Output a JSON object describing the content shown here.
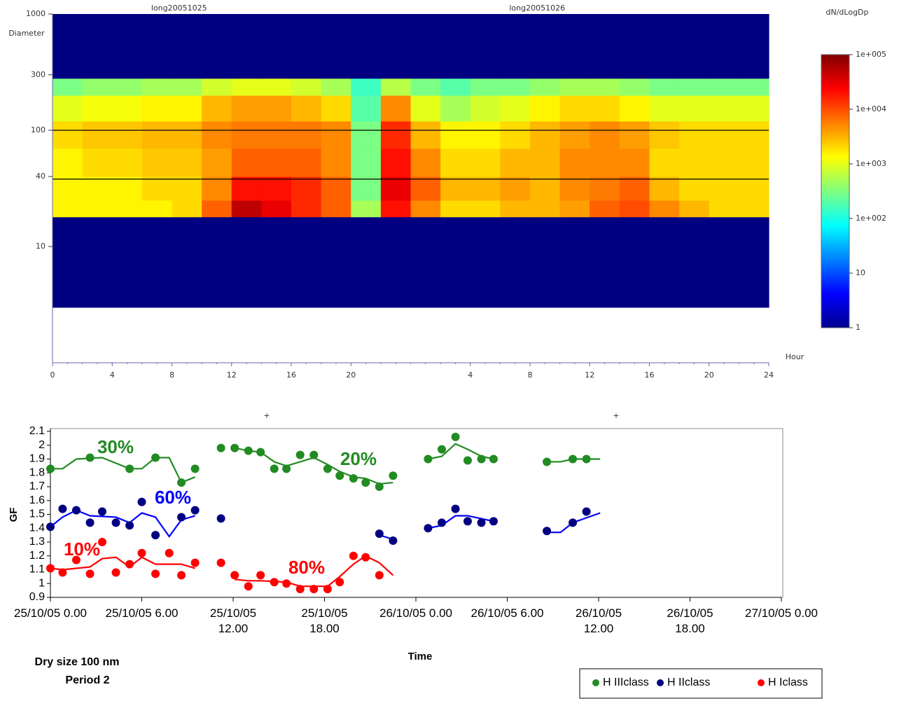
{
  "chart_data": [
    {
      "type": "heatmap",
      "y_label": "Diameter",
      "x_label": "Hour",
      "colorbar_label": "dN/dLogDp",
      "log_y": true,
      "ylim": [
        1,
        1000
      ],
      "yticks": [
        10,
        40,
        100,
        300,
        1000
      ],
      "clim": [
        1,
        100000
      ],
      "cticks": [
        {
          "value": 100000,
          "label": "1e+005"
        },
        {
          "value": 10000,
          "label": "1e+004"
        },
        {
          "value": 1000,
          "label": "1e+003"
        },
        {
          "value": 100,
          "label": "1e+002"
        },
        10,
        1
      ],
      "colormap": "jet",
      "hlines": [
        38,
        100
      ],
      "symbols": [
        "+",
        "+"
      ],
      "row_edges": [
        3,
        18,
        25,
        40,
        70,
        120,
        200,
        280,
        1000
      ],
      "days": [
        {
          "title": "long20051025",
          "xlim": [
            0,
            24
          ],
          "xticks": [
            0,
            4,
            8,
            12,
            16,
            20
          ],
          "col_edges": [
            0,
            2,
            4,
            6,
            8,
            10,
            12,
            14,
            16,
            18,
            20,
            22,
            24
          ],
          "values": [
            [
              1,
              1,
              1,
              1,
              1,
              1,
              1,
              1,
              1,
              1,
              1,
              1
            ],
            [
              1500,
              1500,
              1500,
              1500,
              2000,
              8000,
              50000,
              30000,
              15000,
              8000,
              500,
              20000
            ],
            [
              1500,
              1500,
              1500,
              2000,
              2000,
              5000,
              20000,
              20000,
              15000,
              8000,
              300,
              30000
            ],
            [
              1500,
              2000,
              2000,
              2500,
              2500,
              4000,
              8000,
              8000,
              8000,
              5000,
              300,
              20000
            ],
            [
              2000,
              2500,
              2500,
              3000,
              3000,
              5000,
              6000,
              6000,
              6000,
              5000,
              300,
              15000
            ],
            [
              1000,
              1200,
              1200,
              1500,
              1500,
              3000,
              4000,
              4000,
              3000,
              2000,
              200,
              5000
            ],
            [
              300,
              400,
              400,
              500,
              500,
              800,
              1000,
              1000,
              800,
              500,
              150,
              600
            ],
            [
              1,
              1,
              1,
              1,
              1,
              1,
              1,
              1,
              1,
              1,
              1,
              1
            ]
          ]
        },
        {
          "title": "long20051026",
          "xlim": [
            0,
            24
          ],
          "xticks": [
            4,
            8,
            12,
            16,
            20,
            24
          ],
          "col_edges": [
            0,
            2,
            4,
            6,
            8,
            10,
            12,
            14,
            16,
            18,
            20,
            22,
            24
          ],
          "values": [
            [
              1,
              1,
              1,
              1,
              1,
              1,
              1,
              1,
              1,
              1,
              1,
              1
            ],
            [
              5000,
              2000,
              2000,
              3000,
              3000,
              4000,
              8000,
              10000,
              5000,
              3000,
              2000,
              2000
            ],
            [
              8000,
              3000,
              3000,
              4000,
              3000,
              5000,
              6000,
              8000,
              3000,
              2000,
              2000,
              2000
            ],
            [
              5000,
              2000,
              2000,
              3000,
              3000,
              5000,
              5000,
              5000,
              2000,
              2000,
              2000,
              2000
            ],
            [
              3000,
              1500,
              1500,
              2000,
              3000,
              4000,
              5000,
              4000,
              2500,
              2000,
              2000,
              2000
            ],
            [
              1000,
              500,
              800,
              1000,
              1500,
              2000,
              2000,
              1500,
              1000,
              1000,
              1000,
              1000
            ],
            [
              300,
              200,
              300,
              300,
              400,
              500,
              500,
              400,
              300,
              300,
              300,
              300
            ],
            [
              1,
              1,
              1,
              1,
              1,
              1,
              1,
              1,
              1,
              1,
              1,
              1
            ]
          ]
        }
      ]
    },
    {
      "type": "scatter",
      "ylabel": "GF",
      "xlabel": "Time",
      "xlim": [
        0,
        48
      ],
      "xticks": [
        {
          "value": 0,
          "label": "25/10/05 0.00"
        },
        {
          "value": 6,
          "label": "25/10/05 6.00"
        },
        {
          "value": 12,
          "label": "25/10/05\n12.00"
        },
        {
          "value": 18,
          "label": "25/10/05\n18.00"
        },
        {
          "value": 24,
          "label": "26/10/05 0.00"
        },
        {
          "value": 30,
          "label": "26/10/05 6.00"
        },
        {
          "value": 36,
          "label": "26/10/05\n12.00"
        },
        {
          "value": 42,
          "label": "26/10/05\n18.00"
        },
        {
          "value": 48,
          "label": "27/10/05 0.00"
        }
      ],
      "ylim": [
        0.9,
        2.1
      ],
      "yticks": [
        0.9,
        1,
        1.1,
        1.2,
        1.3,
        1.4,
        1.5,
        1.6,
        1.7,
        1.8,
        1.9,
        2,
        2.1
      ],
      "legend": "bottom-right",
      "notes": [
        "Dry size 100 nm",
        "Period 2"
      ],
      "annotations": [
        {
          "text": "30%",
          "color": "#228b22"
        },
        {
          "text": "60%",
          "color": "#0000ff"
        },
        {
          "text": "10%",
          "color": "#ff0000"
        },
        {
          "text": "20%",
          "color": "#228b22"
        },
        {
          "text": "80%",
          "color": "#ff0000"
        }
      ],
      "series": [
        {
          "name": "H IIIclass",
          "color": "#228b22",
          "line_color": "#228b22",
          "x": [
            0,
            2.6,
            5.2,
            6.9,
            8.6,
            9.5,
            11.2,
            12.1,
            13.0,
            13.8,
            14.7,
            15.5,
            16.4,
            17.3,
            18.2,
            19.0,
            19.9,
            20.7,
            21.6,
            22.5,
            24.8,
            25.7,
            26.6,
            27.4,
            28.3,
            29.1,
            32.6,
            34.3,
            35.2
          ],
          "values": [
            1.83,
            1.91,
            1.83,
            1.91,
            1.73,
            1.83,
            1.98,
            1.98,
            1.96,
            1.95,
            1.83,
            1.83,
            1.93,
            1.93,
            1.83,
            1.78,
            1.76,
            1.73,
            1.7,
            1.78,
            1.9,
            1.97,
            2.06,
            1.89,
            1.9,
            1.9,
            1.88,
            1.9,
            1.9
          ],
          "line_x": [
            0,
            0.8,
            1.7,
            3.4,
            5.2,
            6.0,
            6.9,
            7.8,
            8.6,
            9.5,
            10.8,
            12.1,
            13.0,
            13.8,
            14.7,
            15.5,
            16.4,
            17.3,
            18.2,
            19.0,
            19.9,
            20.7,
            21.6,
            22.5,
            23.6,
            24.8,
            25.7,
            26.6,
            27.4,
            28.3,
            29.1,
            30.8,
            32.6,
            33.5,
            34.3,
            36.1
          ],
          "line_values": [
            1.83,
            1.83,
            1.9,
            1.91,
            1.83,
            1.83,
            1.91,
            1.91,
            1.73,
            1.77,
            null,
            1.98,
            1.96,
            1.95,
            1.88,
            1.85,
            1.88,
            1.91,
            1.86,
            1.81,
            1.77,
            1.76,
            1.72,
            1.73,
            null,
            1.9,
            1.92,
            2.01,
            1.97,
            1.92,
            1.9,
            null,
            1.88,
            1.88,
            1.9,
            1.9
          ]
        },
        {
          "name": "H IIclass",
          "color": "#000080",
          "line_color": "#0000ff",
          "x": [
            0,
            0.8,
            1.7,
            2.6,
            3.4,
            4.3,
            5.2,
            6.0,
            6.9,
            8.6,
            9.5,
            11.2,
            21.6,
            22.5,
            24.8,
            25.7,
            26.6,
            27.4,
            28.3,
            29.1,
            32.6,
            34.3,
            35.2
          ],
          "values": [
            1.41,
            1.54,
            1.53,
            1.44,
            1.52,
            1.44,
            1.42,
            1.59,
            1.35,
            1.48,
            1.53,
            1.47,
            1.36,
            1.31,
            1.4,
            1.44,
            1.54,
            1.45,
            1.44,
            1.45,
            1.38,
            1.44,
            1.52
          ],
          "line_x": [
            0,
            0.8,
            1.7,
            2.6,
            4.3,
            5.2,
            6.0,
            6.9,
            7.8,
            8.6,
            9.5,
            15.0,
            21.6,
            22.5,
            23.6,
            24.8,
            25.7,
            26.6,
            27.4,
            29.1,
            30.8,
            32.6,
            33.5,
            34.3,
            36.1
          ],
          "line_values": [
            1.41,
            1.48,
            1.53,
            1.49,
            1.48,
            1.44,
            1.51,
            1.48,
            1.34,
            1.46,
            1.49,
            null,
            1.35,
            1.32,
            null,
            1.4,
            1.42,
            1.49,
            1.49,
            1.45,
            null,
            1.37,
            1.37,
            1.44,
            1.51
          ]
        },
        {
          "name": "H Iclass",
          "color": "#ff0000",
          "line_color": "#ff0000",
          "x": [
            0,
            0.8,
            1.7,
            2.6,
            3.4,
            4.3,
            5.2,
            6.0,
            6.9,
            7.8,
            8.6,
            9.5,
            11.2,
            12.1,
            13.0,
            13.8,
            14.7,
            15.5,
            16.4,
            17.3,
            18.2,
            19.0,
            19.9,
            20.7,
            21.6
          ],
          "values": [
            1.11,
            1.08,
            1.17,
            1.07,
            1.3,
            1.08,
            1.14,
            1.22,
            1.07,
            1.22,
            1.06,
            1.15,
            1.15,
            1.06,
            0.98,
            1.06,
            1.01,
            1.0,
            0.96,
            0.96,
            0.96,
            1.01,
            1.2,
            1.19,
            1.06
          ],
          "line_x": [
            0,
            0.8,
            2.6,
            3.4,
            4.3,
            5.2,
            6.0,
            6.9,
            8.6,
            9.5,
            10.8,
            12.1,
            13.0,
            13.8,
            15.5,
            16.4,
            18.2,
            19.0,
            19.9,
            20.7,
            21.6,
            22.5
          ],
          "line_values": [
            1.11,
            1.1,
            1.12,
            1.18,
            1.19,
            1.12,
            1.19,
            1.14,
            1.14,
            1.11,
            null,
            1.03,
            1.02,
            1.02,
            1.01,
            0.98,
            0.98,
            1.05,
            1.14,
            1.2,
            1.15,
            1.06
          ]
        }
      ]
    }
  ]
}
